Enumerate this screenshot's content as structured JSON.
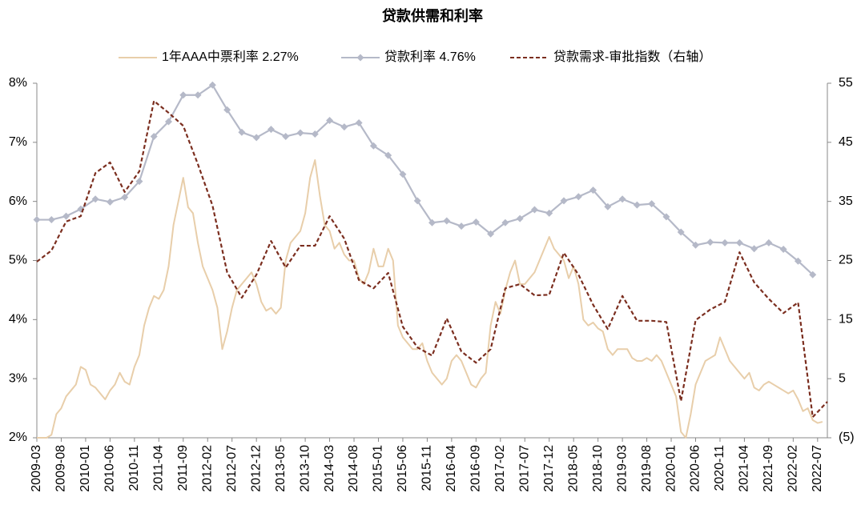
{
  "chart_data": {
    "type": "line",
    "title": "贷款供需和利率",
    "xlim": [
      "2009-03",
      "2022-09"
    ],
    "xticks": [
      "2009-03",
      "2009-08",
      "2010-01",
      "2010-06",
      "2010-11",
      "2011-04",
      "2011-09",
      "2012-02",
      "2012-07",
      "2012-12",
      "2013-05",
      "2013-10",
      "2014-03",
      "2014-08",
      "2015-01",
      "2015-06",
      "2015-11",
      "2016-04",
      "2016-09",
      "2017-02",
      "2017-07",
      "2017-12",
      "2018-05",
      "2018-10",
      "2019-03",
      "2019-08",
      "2020-01",
      "2020-06",
      "2020-11",
      "2021-04",
      "2021-09",
      "2022-02",
      "2022-07"
    ],
    "ylim": [
      2,
      8
    ],
    "yticks": [
      {
        "value": 2,
        "label": "2%"
      },
      {
        "value": 3,
        "label": "3%"
      },
      {
        "value": 4,
        "label": "4%"
      },
      {
        "value": 5,
        "label": "5%"
      },
      {
        "value": 6,
        "label": "6%"
      },
      {
        "value": 7,
        "label": "7%"
      },
      {
        "value": 8,
        "label": "8%"
      }
    ],
    "y2lim": [
      -5,
      55
    ],
    "y2ticks": [
      {
        "value": -5,
        "label": "(5)"
      },
      5,
      15,
      25,
      35,
      45,
      55
    ],
    "negative_tick_color": "#ff0000",
    "grid": false,
    "legend": "top",
    "x": [
      "2009-03",
      "2009-06",
      "2009-09",
      "2009-12",
      "2010-03",
      "2010-06",
      "2010-09",
      "2010-12",
      "2011-03",
      "2011-06",
      "2011-09",
      "2011-12",
      "2012-03",
      "2012-06",
      "2012-09",
      "2012-12",
      "2013-03",
      "2013-06",
      "2013-09",
      "2013-12",
      "2014-03",
      "2014-06",
      "2014-09",
      "2014-12",
      "2015-03",
      "2015-06",
      "2015-09",
      "2015-12",
      "2016-03",
      "2016-06",
      "2016-09",
      "2016-12",
      "2017-03",
      "2017-06",
      "2017-09",
      "2017-12",
      "2018-03",
      "2018-06",
      "2018-09",
      "2018-12",
      "2019-03",
      "2019-06",
      "2019-09",
      "2019-12",
      "2020-03",
      "2020-06",
      "2020-09",
      "2020-12",
      "2021-03",
      "2021-06",
      "2021-09",
      "2021-12",
      "2022-03",
      "2022-06",
      "2022-09"
    ],
    "series": [
      {
        "name": "1年AAA中票利率 2.27%",
        "color": "#e8ceaa",
        "style": "solid",
        "x": [
          "2009-03",
          "2009-04",
          "2009-05",
          "2009-06",
          "2009-07",
          "2009-08",
          "2009-09",
          "2009-10",
          "2009-11",
          "2009-12",
          "2010-01",
          "2010-02",
          "2010-03",
          "2010-04",
          "2010-05",
          "2010-06",
          "2010-07",
          "2010-08",
          "2010-09",
          "2010-10",
          "2010-11",
          "2010-12",
          "2011-01",
          "2011-02",
          "2011-03",
          "2011-04",
          "2011-05",
          "2011-06",
          "2011-07",
          "2011-08",
          "2011-09",
          "2011-10",
          "2011-11",
          "2011-12",
          "2012-01",
          "2012-02",
          "2012-03",
          "2012-04",
          "2012-05",
          "2012-06",
          "2012-07",
          "2012-08",
          "2012-09",
          "2012-10",
          "2012-11",
          "2012-12",
          "2013-01",
          "2013-02",
          "2013-03",
          "2013-04",
          "2013-05",
          "2013-06",
          "2013-07",
          "2013-08",
          "2013-09",
          "2013-10",
          "2013-11",
          "2013-12",
          "2014-01",
          "2014-02",
          "2014-03",
          "2014-04",
          "2014-05",
          "2014-06",
          "2014-07",
          "2014-08",
          "2014-09",
          "2014-10",
          "2014-11",
          "2014-12",
          "2015-01",
          "2015-02",
          "2015-03",
          "2015-04",
          "2015-05",
          "2015-06",
          "2015-07",
          "2015-08",
          "2015-09",
          "2015-10",
          "2015-11",
          "2015-12",
          "2016-01",
          "2016-02",
          "2016-03",
          "2016-04",
          "2016-05",
          "2016-06",
          "2016-07",
          "2016-08",
          "2016-09",
          "2016-10",
          "2016-11",
          "2016-12",
          "2017-01",
          "2017-02",
          "2017-03",
          "2017-04",
          "2017-05",
          "2017-06",
          "2017-07",
          "2017-08",
          "2017-09",
          "2017-10",
          "2017-11",
          "2017-12",
          "2018-01",
          "2018-02",
          "2018-03",
          "2018-04",
          "2018-05",
          "2018-06",
          "2018-07",
          "2018-08",
          "2018-09",
          "2018-10",
          "2018-11",
          "2018-12",
          "2019-01",
          "2019-02",
          "2019-03",
          "2019-04",
          "2019-05",
          "2019-06",
          "2019-07",
          "2019-08",
          "2019-09",
          "2019-10",
          "2019-11",
          "2019-12",
          "2020-01",
          "2020-02",
          "2020-03",
          "2020-04",
          "2020-05",
          "2020-06",
          "2020-07",
          "2020-08",
          "2020-09",
          "2020-10",
          "2020-11",
          "2020-12",
          "2021-01",
          "2021-02",
          "2021-03",
          "2021-04",
          "2021-05",
          "2021-06",
          "2021-07",
          "2021-08",
          "2021-09",
          "2021-10",
          "2021-11",
          "2021-12",
          "2022-01",
          "2022-02",
          "2022-03",
          "2022-04",
          "2022-05",
          "2022-06",
          "2022-07",
          "2022-08"
        ],
        "values": [
          2.0,
          2.0,
          2.0,
          2.05,
          2.4,
          2.5,
          2.7,
          2.8,
          2.9,
          3.2,
          3.15,
          2.9,
          2.85,
          2.75,
          2.65,
          2.8,
          2.9,
          3.1,
          2.95,
          2.9,
          3.2,
          3.4,
          3.9,
          4.2,
          4.4,
          4.35,
          4.5,
          4.9,
          5.6,
          6.0,
          6.4,
          5.9,
          5.8,
          5.3,
          4.9,
          4.7,
          4.5,
          4.2,
          3.5,
          3.8,
          4.2,
          4.5,
          4.6,
          4.7,
          4.8,
          4.6,
          4.3,
          4.15,
          4.2,
          4.1,
          4.2,
          5.0,
          5.3,
          5.4,
          5.5,
          5.8,
          6.4,
          6.7,
          6.1,
          5.6,
          5.5,
          5.2,
          5.3,
          5.1,
          5.0,
          5.0,
          4.7,
          4.6,
          4.8,
          5.2,
          4.9,
          4.9,
          5.2,
          5.0,
          3.9,
          3.7,
          3.6,
          3.5,
          3.5,
          3.6,
          3.3,
          3.1,
          3.0,
          2.9,
          3.0,
          3.3,
          3.4,
          3.3,
          3.1,
          2.9,
          2.85,
          3.0,
          3.1,
          3.9,
          4.3,
          4.1,
          4.5,
          4.8,
          5.0,
          4.6,
          4.6,
          4.7,
          4.8,
          5.0,
          5.2,
          5.4,
          5.2,
          5.1,
          5.0,
          4.7,
          4.9,
          4.6,
          4.0,
          3.9,
          3.95,
          3.85,
          3.8,
          3.5,
          3.4,
          3.5,
          3.5,
          3.5,
          3.35,
          3.3,
          3.3,
          3.35,
          3.3,
          3.4,
          3.3,
          3.1,
          2.9,
          2.7,
          2.1,
          2.0,
          2.4,
          2.9,
          3.1,
          3.3,
          3.35,
          3.4,
          3.7,
          3.5,
          3.3,
          3.2,
          3.1,
          3.0,
          3.1,
          2.85,
          2.8,
          2.9,
          2.95,
          2.9,
          2.85,
          2.8,
          2.75,
          2.8,
          2.65,
          2.45,
          2.5,
          2.3,
          2.25,
          2.27
        ]
      },
      {
        "name": "贷款利率  4.76%",
        "color": "#b5b9c8",
        "style": "marker",
        "values": [
          5.69,
          5.69,
          5.75,
          5.87,
          6.04,
          5.99,
          6.07,
          6.34,
          7.1,
          7.35,
          7.8,
          7.8,
          7.97,
          7.55,
          7.17,
          7.08,
          7.22,
          7.1,
          7.16,
          7.14,
          7.37,
          7.26,
          7.33,
          6.94,
          6.78,
          6.46,
          6.01,
          5.64,
          5.67,
          5.58,
          5.65,
          5.45,
          5.64,
          5.71,
          5.86,
          5.8,
          6.01,
          6.08,
          6.19,
          5.91,
          6.04,
          5.94,
          5.96,
          5.74,
          5.48,
          5.26,
          5.31,
          5.3,
          5.3,
          5.2,
          5.3,
          5.19,
          4.99,
          4.76,
          null
        ]
      },
      {
        "name": "贷款需求-审批指数（右轴）",
        "color": "#7b2e1f",
        "style": "dashed",
        "axis": "y2",
        "values": [
          24.8,
          26.7,
          31.6,
          32.5,
          39.8,
          41.6,
          36.6,
          40.1,
          52.0,
          50.0,
          47.8,
          41.3,
          34.3,
          23.0,
          18.7,
          22.6,
          28.3,
          23.8,
          27.5,
          27.5,
          32.5,
          28.7,
          21.7,
          20.3,
          22.9,
          13.8,
          10.3,
          8.9,
          15.2,
          9.6,
          7.7,
          10.0,
          20.3,
          21.0,
          19.1,
          19.2,
          26.3,
          22.6,
          17.5,
          13.4,
          19.0,
          14.8,
          14.8,
          14.6,
          1.2,
          14.9,
          16.7,
          18.0,
          26.4,
          21.3,
          18.5,
          16.1,
          17.9,
          -1.5,
          1.1
        ]
      }
    ]
  }
}
